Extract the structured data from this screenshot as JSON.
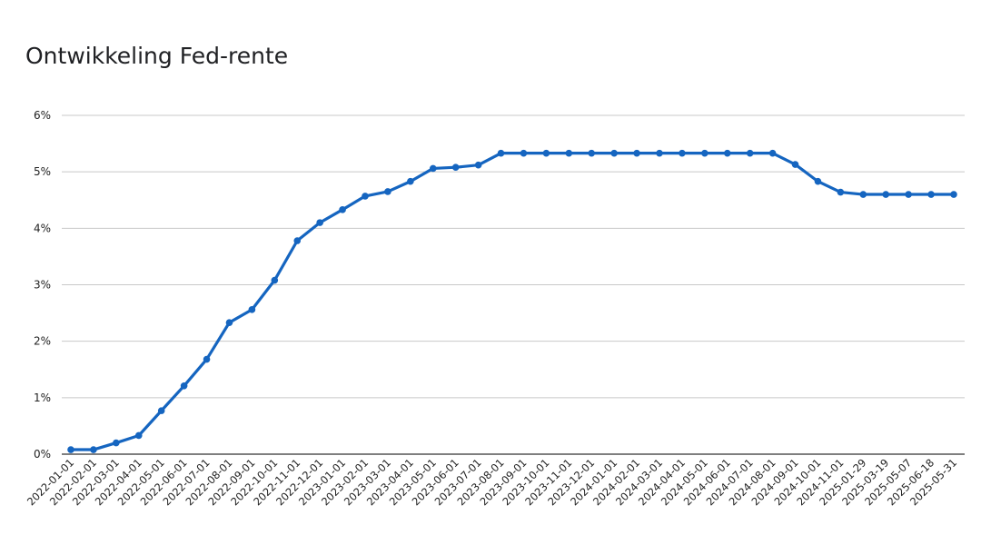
{
  "chart_data": {
    "type": "line",
    "title": "Ontwikkeling Fed-rente",
    "xlabel": "",
    "ylabel": "",
    "ylim": [
      0,
      6
    ],
    "y_ticks": [
      "0%",
      "1%",
      "2%",
      "3%",
      "4%",
      "5%",
      "6%"
    ],
    "grid": true,
    "legend": "none",
    "colors": {
      "line": "#1565c0",
      "grid": "#c8c8c8",
      "axis": "#333333"
    },
    "categories": [
      "2022-01-01",
      "2022-02-01",
      "2022-03-01",
      "2022-04-01",
      "2022-05-01",
      "2022-06-01",
      "2022-07-01",
      "2022-08-01",
      "2022-09-01",
      "2022-10-01",
      "2022-11-01",
      "2022-12-01",
      "2023-01-01",
      "2023-02-01",
      "2023-03-01",
      "2023-04-01",
      "2023-05-01",
      "2023-06-01",
      "2023-07-01",
      "2023-08-01",
      "2023-09-01",
      "2023-10-01",
      "2023-11-01",
      "2023-12-01",
      "2024-01-01",
      "2024-02-01",
      "2024-03-01",
      "2024-04-01",
      "2024-05-01",
      "2024-06-01",
      "2024-07-01",
      "2024-08-01",
      "2024-09-01",
      "2024-10-01",
      "2024-11-01",
      "2025-01-29",
      "2025-03-19",
      "2025-05-07",
      "2025-06-18",
      "2025-05-31"
    ],
    "series": [
      {
        "values": [
          0.08,
          0.08,
          0.2,
          0.33,
          0.77,
          1.21,
          1.68,
          2.33,
          2.56,
          3.08,
          3.78,
          4.1,
          4.33,
          4.57,
          4.65,
          4.83,
          5.06,
          5.08,
          5.12,
          5.33,
          5.33,
          5.33,
          5.33,
          5.33,
          5.33,
          5.33,
          5.33,
          5.33,
          5.33,
          5.33,
          5.33,
          5.33,
          5.13,
          4.83,
          4.64,
          4.6,
          4.6,
          4.6,
          4.6,
          4.6
        ]
      }
    ]
  }
}
